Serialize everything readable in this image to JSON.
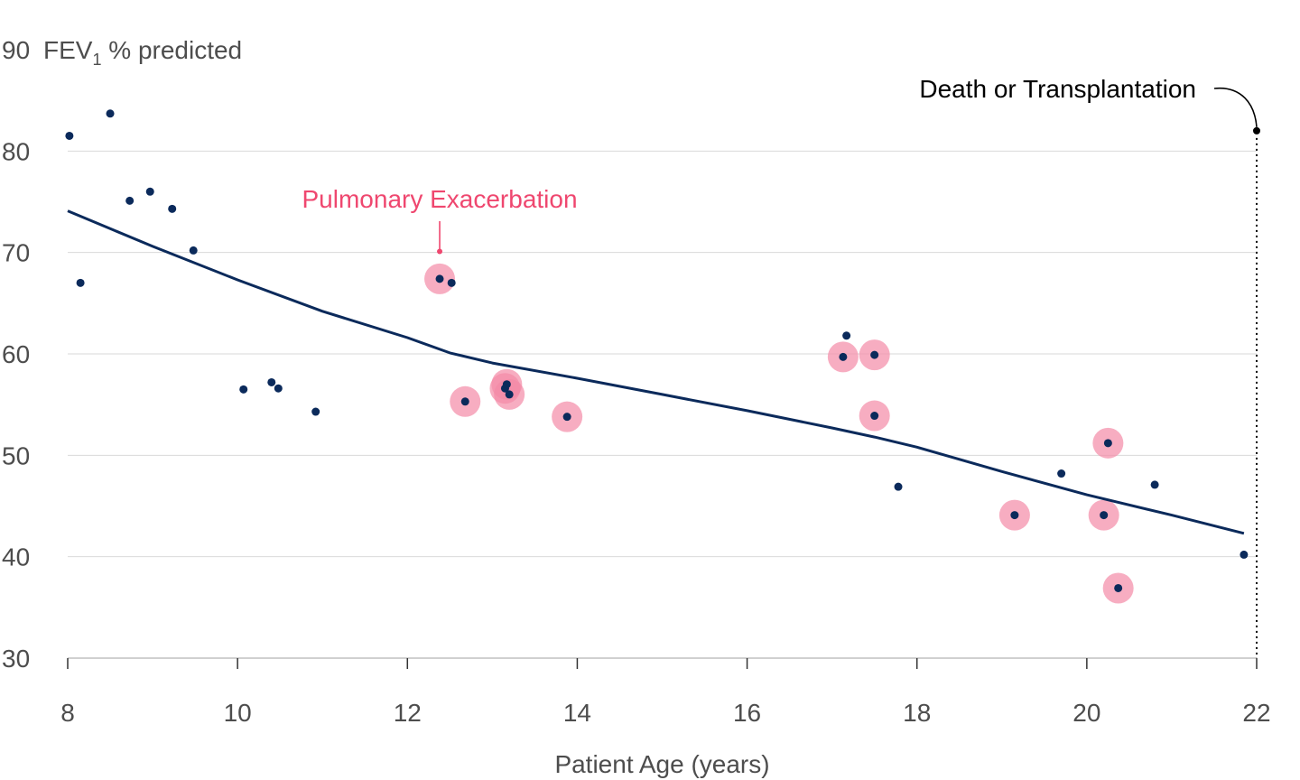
{
  "chart_data": {
    "type": "scatter",
    "ylabel": {
      "prefix": "FEV",
      "subscript": "1",
      "suffix": " % predicted"
    },
    "xlabel": "Patient Age (years)",
    "xlim": [
      8,
      22
    ],
    "ylim": [
      30,
      90
    ],
    "x_ticks": [
      8,
      10,
      12,
      14,
      16,
      18,
      20,
      22
    ],
    "y_ticks": [
      30,
      40,
      50,
      60,
      70,
      80,
      90
    ],
    "grid": "horizontal",
    "colors": {
      "point": "#0b2a5b",
      "trend": "#0b2a5b",
      "exacerbation": "#f48aa6",
      "annotation": "#ef476f",
      "grid": "#d9d9d9",
      "axis": "#c0c0c0"
    },
    "points": [
      {
        "x": 8.02,
        "y": 81.5,
        "exacerbation": false
      },
      {
        "x": 8.15,
        "y": 67.0,
        "exacerbation": false
      },
      {
        "x": 8.5,
        "y": 83.7,
        "exacerbation": false
      },
      {
        "x": 8.73,
        "y": 75.1,
        "exacerbation": false
      },
      {
        "x": 8.97,
        "y": 76.0,
        "exacerbation": false
      },
      {
        "x": 9.23,
        "y": 74.3,
        "exacerbation": false
      },
      {
        "x": 9.48,
        "y": 70.2,
        "exacerbation": false
      },
      {
        "x": 10.07,
        "y": 56.5,
        "exacerbation": false
      },
      {
        "x": 10.4,
        "y": 57.2,
        "exacerbation": false
      },
      {
        "x": 10.48,
        "y": 56.6,
        "exacerbation": false
      },
      {
        "x": 10.92,
        "y": 54.3,
        "exacerbation": false
      },
      {
        "x": 12.38,
        "y": 67.4,
        "exacerbation": true
      },
      {
        "x": 12.52,
        "y": 67.0,
        "exacerbation": false
      },
      {
        "x": 12.68,
        "y": 55.3,
        "exacerbation": true
      },
      {
        "x": 13.15,
        "y": 56.6,
        "exacerbation": true
      },
      {
        "x": 13.17,
        "y": 57.0,
        "exacerbation": true
      },
      {
        "x": 13.2,
        "y": 56.0,
        "exacerbation": true
      },
      {
        "x": 13.88,
        "y": 53.8,
        "exacerbation": true
      },
      {
        "x": 17.13,
        "y": 59.7,
        "exacerbation": true
      },
      {
        "x": 17.17,
        "y": 61.8,
        "exacerbation": false
      },
      {
        "x": 17.5,
        "y": 59.9,
        "exacerbation": true
      },
      {
        "x": 17.5,
        "y": 53.9,
        "exacerbation": true
      },
      {
        "x": 17.78,
        "y": 46.9,
        "exacerbation": false
      },
      {
        "x": 19.15,
        "y": 44.1,
        "exacerbation": true
      },
      {
        "x": 19.7,
        "y": 48.2,
        "exacerbation": false
      },
      {
        "x": 20.2,
        "y": 44.1,
        "exacerbation": true
      },
      {
        "x": 20.25,
        "y": 51.2,
        "exacerbation": true
      },
      {
        "x": 20.37,
        "y": 36.9,
        "exacerbation": true
      },
      {
        "x": 20.8,
        "y": 47.1,
        "exacerbation": false
      },
      {
        "x": 21.85,
        "y": 40.2,
        "exacerbation": false
      }
    ],
    "trend": {
      "x": [
        8,
        9,
        10,
        11,
        12,
        12.5,
        13,
        14,
        15,
        16,
        17,
        17.5,
        18,
        19,
        20,
        21,
        21.85
      ],
      "y": [
        74.1,
        70.6,
        67.3,
        64.2,
        61.6,
        60.1,
        59.1,
        57.6,
        56.0,
        54.4,
        52.7,
        51.8,
        50.8,
        48.4,
        46.1,
        44.1,
        42.3
      ]
    },
    "annotations": [
      {
        "text": "Pulmonary Exacerbation",
        "target_x": 12.38,
        "target_y": 70.1
      },
      {
        "text": "Death or Transplantation",
        "target_x": 22,
        "target_y": 82.0
      }
    ]
  }
}
